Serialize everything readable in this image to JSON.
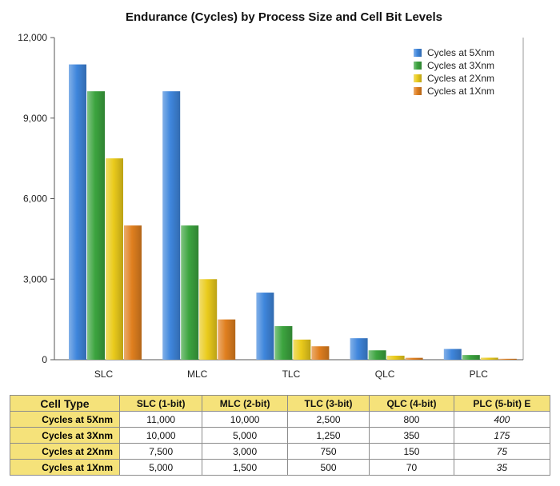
{
  "chart_data": {
    "type": "bar",
    "title": "Endurance (Cycles) by Process Size and Cell Bit Levels",
    "xlabel": "",
    "ylabel": "",
    "categories": [
      "SLC",
      "MLC",
      "TLC",
      "QLC",
      "PLC"
    ],
    "series": [
      {
        "name": "Cycles at 5Xnm",
        "values": [
          11000,
          10000,
          2500,
          800,
          400
        ]
      },
      {
        "name": "Cycles at 3Xnm",
        "values": [
          10000,
          5000,
          1250,
          350,
          175
        ]
      },
      {
        "name": "Cycles at 2Xnm",
        "values": [
          7500,
          3000,
          750,
          150,
          75
        ]
      },
      {
        "name": "Cycles at 1Xnm",
        "values": [
          5000,
          1500,
          500,
          70,
          35
        ]
      }
    ],
    "ylim": [
      0,
      12000
    ],
    "yticks": [
      0,
      3000,
      6000,
      9000,
      12000
    ],
    "ytick_labels": [
      "0",
      "3,000",
      "6,000",
      "9,000",
      "12,000"
    ],
    "legend_position": "top-right",
    "grid": false,
    "colors": [
      "#3f86dc",
      "#3ca43f",
      "#eacb1c",
      "#e07f1f"
    ]
  },
  "table": {
    "header": [
      "Cell Type",
      "SLC (1-bit)",
      "MLC (2-bit)",
      "TLC (3-bit)",
      "QLC (4-bit)",
      "PLC (5-bit) E"
    ],
    "rows": [
      {
        "label": "Cycles at 5Xnm",
        "cells": [
          "11,000",
          "10,000",
          "2,500",
          "800",
          "400"
        ]
      },
      {
        "label": "Cycles at 3Xnm",
        "cells": [
          "10,000",
          "5,000",
          "1,250",
          "350",
          "175"
        ]
      },
      {
        "label": "Cycles at 2Xnm",
        "cells": [
          "7,500",
          "3,000",
          "750",
          "150",
          "75"
        ]
      },
      {
        "label": "Cycles at 1Xnm",
        "cells": [
          "5,000",
          "1,500",
          "500",
          "70",
          "35"
        ]
      }
    ],
    "colors": {
      "header_bg": "#f5e27a",
      "border": "#8c8c8c"
    }
  }
}
